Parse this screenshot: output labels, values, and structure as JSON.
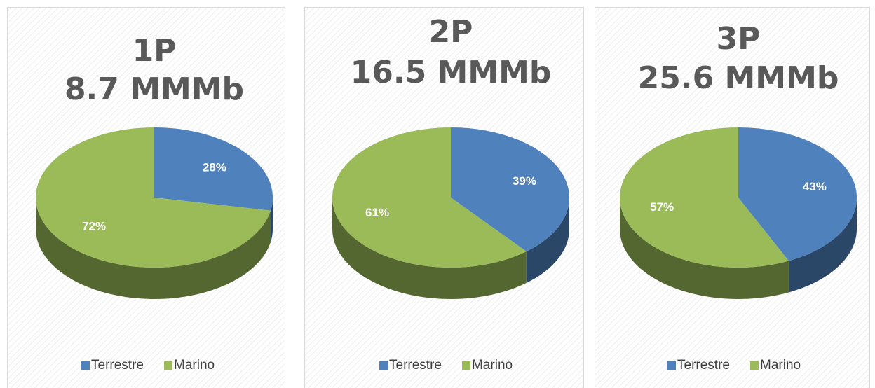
{
  "chart_data": [
    {
      "type": "pie",
      "title": "1P",
      "subtitle": "8.7 MMMb",
      "categories": [
        "Terrestre",
        "Marino"
      ],
      "values": [
        28,
        72
      ],
      "value_labels": [
        "28%",
        "72%"
      ],
      "colors": [
        "#4f81bd",
        "#9bbb59"
      ],
      "legend": "bottom"
    },
    {
      "type": "pie",
      "title": "2P",
      "subtitle": "16.5 MMMb",
      "categories": [
        "Terrestre",
        "Marino"
      ],
      "values": [
        39,
        61
      ],
      "value_labels": [
        "39%",
        "61%"
      ],
      "colors": [
        "#4f81bd",
        "#9bbb59"
      ],
      "legend": "bottom"
    },
    {
      "type": "pie",
      "title": "3P",
      "subtitle": "25.6 MMMb",
      "categories": [
        "Terrestre",
        "Marino"
      ],
      "values": [
        43,
        57
      ],
      "value_labels": [
        "43%",
        "57%"
      ],
      "colors": [
        "#4f81bd",
        "#9bbb59"
      ],
      "legend": "bottom"
    }
  ]
}
